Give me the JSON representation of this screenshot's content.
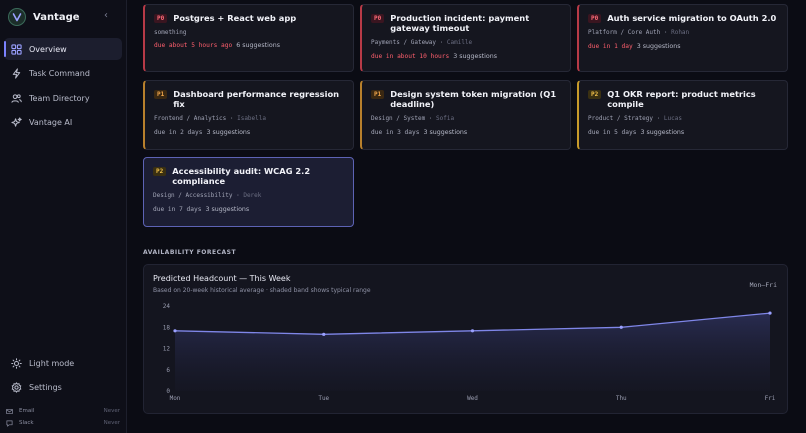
{
  "app": {
    "name": "Vantage",
    "collapse_glyph": "‹"
  },
  "nav": {
    "items": [
      {
        "label": "Overview",
        "icon": "grid-icon",
        "active": true
      },
      {
        "label": "Task Command",
        "icon": "bolt-icon",
        "active": false
      },
      {
        "label": "Team Directory",
        "icon": "users-icon",
        "active": false
      },
      {
        "label": "Vantage AI",
        "icon": "sparkle-icon",
        "active": false
      }
    ],
    "bottom": [
      {
        "label": "Light mode",
        "icon": "sun-icon"
      },
      {
        "label": "Settings",
        "icon": "gear-icon"
      }
    ],
    "integrations": [
      {
        "label": "Email",
        "status": "Never",
        "icon": "mail-icon"
      },
      {
        "label": "Slack",
        "status": "Never",
        "icon": "chat-icon"
      }
    ]
  },
  "colors": {
    "accent": "#7b82ff",
    "p0": "#ff5f6d",
    "p1": "#f0a54a",
    "p2": "#f0c04a"
  },
  "cards": [
    {
      "priority": "P0",
      "title": "Postgres + React web app",
      "team": "something",
      "assignee": "",
      "due": "due about 5 hours ago",
      "due_urgent": true,
      "suggestions": "6 suggestions"
    },
    {
      "priority": "P0",
      "title": "Production incident: payment gateway timeout",
      "team": "Payments / Gateway",
      "assignee": "Camille",
      "due": "due in about 10 hours",
      "due_urgent": true,
      "suggestions": "3 suggestions"
    },
    {
      "priority": "P0",
      "title": "Auth service migration to OAuth 2.0",
      "team": "Platform / Core Auth",
      "assignee": "Rohan",
      "due": "due in 1 day",
      "due_urgent": true,
      "suggestions": "3 suggestions"
    },
    {
      "priority": "P1",
      "title": "Dashboard performance regression fix",
      "team": "Frontend / Analytics",
      "assignee": "Isabella",
      "due": "due in 2 days",
      "due_urgent": false,
      "suggestions": "3 suggestions"
    },
    {
      "priority": "P1",
      "title": "Design system token migration (Q1 deadline)",
      "team": "Design / System",
      "assignee": "Sofia",
      "due": "due in 3 days",
      "due_urgent": false,
      "suggestions": "3 suggestions"
    },
    {
      "priority": "P2",
      "title": "Q1 OKR report: product metrics compile",
      "team": "Product / Strategy",
      "assignee": "Lucas",
      "due": "due in 5 days",
      "due_urgent": false,
      "suggestions": "3 suggestions"
    },
    {
      "priority": "P2",
      "title": "Accessibility audit: WCAG 2.2 compliance",
      "team": "Design / Accessibility",
      "assignee": "Derek",
      "due": "due in 7 days",
      "due_urgent": false,
      "suggestions": "3 suggestions",
      "selected": true
    }
  ],
  "forecast": {
    "section_label": "AVAILABILITY FORECAST",
    "title": "Predicted Headcount — This Week",
    "subtitle": "Based on 20-week historical average · shaded band shows typical range",
    "range_label": "Mon–Fri"
  },
  "chart_data": {
    "type": "line",
    "categories": [
      "Mon",
      "Tue",
      "Wed",
      "Thu",
      "Fri"
    ],
    "series": [
      {
        "values": [
          17,
          16,
          17,
          18,
          22
        ]
      }
    ],
    "yticks": [
      0,
      6,
      12,
      18,
      24
    ],
    "ylim": [
      0,
      24
    ],
    "grid": false
  }
}
